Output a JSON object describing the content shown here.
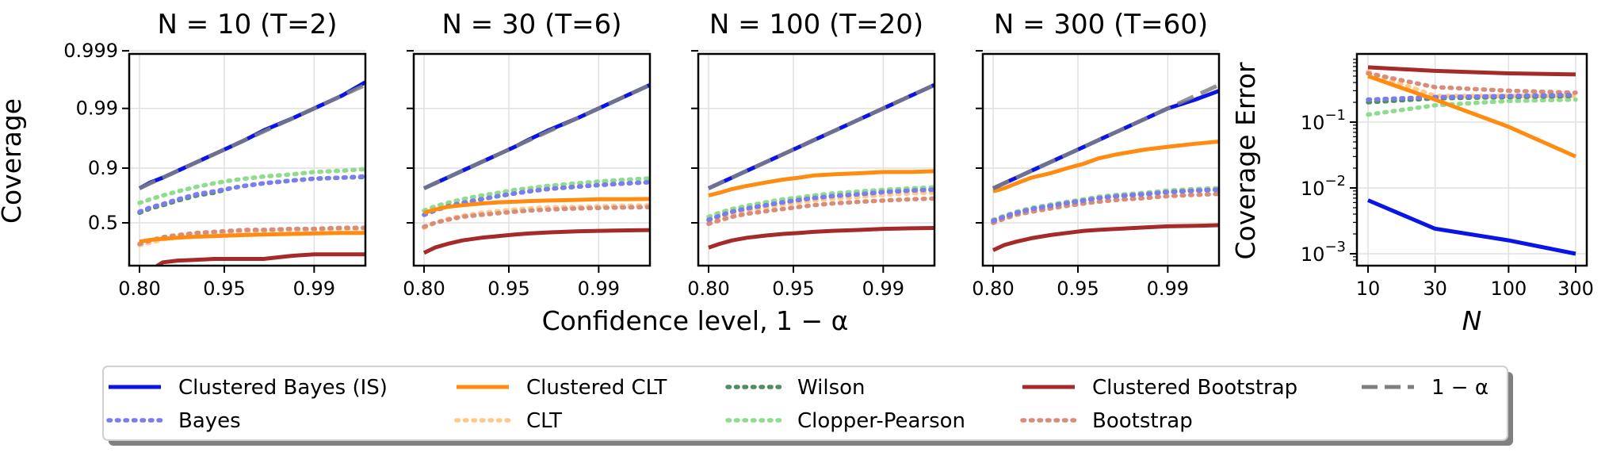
{
  "figure": {
    "xlabel_shared": "Confidence level, 1 − α",
    "ylabel_left": "Coverage"
  },
  "chart_data": [
    {
      "type": "line",
      "title": "N = 10 (T=2)",
      "xlabel": "",
      "ylabel": "Coverage",
      "x_ticks": [
        "0.80",
        "0.95",
        "0.99"
      ],
      "y_ticks": [
        "0.5",
        "0.9",
        "0.99",
        "0.999"
      ],
      "y_scale": "logit",
      "grid": true,
      "x": [
        0.8,
        0.83,
        0.86,
        0.89,
        0.92,
        0.94,
        0.955,
        0.965,
        0.975,
        0.985,
        0.99,
        0.994,
        0.997
      ],
      "series": [
        {
          "name": "Clustered Bayes (IS)",
          "values": [
            0.8,
            0.835,
            0.86,
            0.89,
            0.92,
            0.94,
            0.955,
            0.965,
            0.976,
            0.985,
            0.99,
            0.994,
            0.9975
          ]
        },
        {
          "name": "Bayes",
          "values": [
            0.61,
            0.65,
            0.68,
            0.72,
            0.76,
            0.78,
            0.8,
            0.815,
            0.83,
            0.845,
            0.855,
            0.86,
            0.87
          ]
        },
        {
          "name": "Clustered CLT",
          "values": [
            0.32,
            0.335,
            0.345,
            0.355,
            0.365,
            0.37,
            0.375,
            0.38,
            0.385,
            0.39,
            0.395,
            0.4,
            0.4
          ]
        },
        {
          "name": "CLT",
          "values": [
            0.29,
            0.31,
            0.34,
            0.36,
            0.38,
            0.39,
            0.4,
            0.41,
            0.42,
            0.43,
            0.43,
            0.44,
            0.44
          ]
        },
        {
          "name": "Wilson",
          "values": [
            0.6,
            0.64,
            0.67,
            0.71,
            0.75,
            0.77,
            0.8,
            0.815,
            0.83,
            0.845,
            0.855,
            0.86,
            0.865
          ]
        },
        {
          "name": "Clopper-Pearson",
          "values": [
            0.69,
            0.72,
            0.75,
            0.78,
            0.81,
            0.83,
            0.845,
            0.855,
            0.865,
            0.875,
            0.885,
            0.89,
            0.9
          ]
        },
        {
          "name": "Clustered Bootstrap",
          "values": [
            0.1,
            0.13,
            0.17,
            0.18,
            0.185,
            0.19,
            0.19,
            0.19,
            0.19,
            0.21,
            0.22,
            0.22,
            0.22
          ]
        },
        {
          "name": "Bootstrap",
          "values": [
            0.3,
            0.33,
            0.36,
            0.38,
            0.4,
            0.41,
            0.42,
            0.43,
            0.43,
            0.44,
            0.44,
            0.45,
            0.45
          ]
        },
        {
          "name": "1 − α",
          "values": [
            0.8,
            0.83,
            0.86,
            0.89,
            0.92,
            0.94,
            0.955,
            0.965,
            0.975,
            0.985,
            0.99,
            0.994,
            0.997
          ]
        }
      ]
    },
    {
      "type": "line",
      "title": "N = 30 (T=6)",
      "xlabel": "",
      "ylabel": "",
      "x_ticks": [
        "0.80",
        "0.95",
        "0.99"
      ],
      "y_ticks": [
        "0.5",
        "0.9",
        "0.99",
        "0.999"
      ],
      "y_scale": "logit",
      "grid": true,
      "x": [
        0.8,
        0.83,
        0.86,
        0.89,
        0.92,
        0.94,
        0.955,
        0.965,
        0.975,
        0.985,
        0.99,
        0.994,
        0.997
      ],
      "series": [
        {
          "name": "Clustered Bayes (IS)",
          "values": [
            0.8,
            0.83,
            0.86,
            0.89,
            0.92,
            0.94,
            0.955,
            0.966,
            0.976,
            0.985,
            0.99,
            0.994,
            0.997
          ]
        },
        {
          "name": "Bayes",
          "values": [
            0.58,
            0.62,
            0.66,
            0.69,
            0.72,
            0.745,
            0.765,
            0.78,
            0.795,
            0.81,
            0.82,
            0.83,
            0.84
          ]
        },
        {
          "name": "Clustered CLT",
          "values": [
            0.6,
            0.63,
            0.655,
            0.67,
            0.685,
            0.695,
            0.7,
            0.705,
            0.71,
            0.715,
            0.72,
            0.72,
            0.725
          ]
        },
        {
          "name": "CLT",
          "values": [
            0.45,
            0.5,
            0.54,
            0.57,
            0.6,
            0.615,
            0.63,
            0.64,
            0.65,
            0.655,
            0.66,
            0.665,
            0.67
          ]
        },
        {
          "name": "Wilson",
          "values": [
            0.58,
            0.62,
            0.66,
            0.69,
            0.72,
            0.745,
            0.765,
            0.78,
            0.795,
            0.81,
            0.82,
            0.83,
            0.84
          ]
        },
        {
          "name": "Clopper-Pearson",
          "values": [
            0.62,
            0.66,
            0.69,
            0.72,
            0.75,
            0.77,
            0.79,
            0.8,
            0.815,
            0.83,
            0.84,
            0.85,
            0.86
          ]
        },
        {
          "name": "Clustered Bootstrap",
          "values": [
            0.23,
            0.27,
            0.3,
            0.33,
            0.355,
            0.37,
            0.385,
            0.395,
            0.405,
            0.415,
            0.42,
            0.425,
            0.43
          ]
        },
        {
          "name": "Bootstrap",
          "values": [
            0.46,
            0.5,
            0.53,
            0.56,
            0.58,
            0.595,
            0.61,
            0.62,
            0.63,
            0.64,
            0.645,
            0.65,
            0.655
          ]
        },
        {
          "name": "1 − α",
          "values": [
            0.8,
            0.83,
            0.86,
            0.89,
            0.92,
            0.94,
            0.955,
            0.965,
            0.975,
            0.985,
            0.99,
            0.994,
            0.997
          ]
        }
      ]
    },
    {
      "type": "line",
      "title": "N = 100 (T=20)",
      "xlabel": "",
      "ylabel": "",
      "x_ticks": [
        "0.80",
        "0.95",
        "0.99"
      ],
      "y_ticks": [
        "0.5",
        "0.9",
        "0.99",
        "0.999"
      ],
      "y_scale": "logit",
      "grid": true,
      "x": [
        0.8,
        0.83,
        0.86,
        0.89,
        0.92,
        0.94,
        0.955,
        0.965,
        0.975,
        0.985,
        0.99,
        0.994,
        0.997
      ],
      "series": [
        {
          "name": "Clustered Bayes (IS)",
          "values": [
            0.8,
            0.83,
            0.86,
            0.89,
            0.92,
            0.94,
            0.955,
            0.965,
            0.975,
            0.985,
            0.99,
            0.994,
            0.997
          ]
        },
        {
          "name": "Bayes",
          "values": [
            0.53,
            0.57,
            0.61,
            0.64,
            0.67,
            0.695,
            0.715,
            0.73,
            0.745,
            0.76,
            0.775,
            0.785,
            0.795
          ]
        },
        {
          "name": "Clustered CLT",
          "values": [
            0.75,
            0.77,
            0.795,
            0.815,
            0.835,
            0.85,
            0.86,
            0.87,
            0.875,
            0.88,
            0.885,
            0.885,
            0.89
          ]
        },
        {
          "name": "CLT",
          "values": [
            0.52,
            0.555,
            0.59,
            0.62,
            0.65,
            0.675,
            0.695,
            0.71,
            0.725,
            0.74,
            0.755,
            0.765,
            0.775
          ]
        },
        {
          "name": "Wilson",
          "values": [
            0.53,
            0.57,
            0.61,
            0.64,
            0.67,
            0.695,
            0.715,
            0.73,
            0.745,
            0.76,
            0.775,
            0.785,
            0.795
          ]
        },
        {
          "name": "Clopper-Pearson",
          "values": [
            0.56,
            0.6,
            0.635,
            0.665,
            0.695,
            0.72,
            0.735,
            0.75,
            0.765,
            0.78,
            0.79,
            0.8,
            0.81
          ]
        },
        {
          "name": "Clustered Bootstrap",
          "values": [
            0.27,
            0.3,
            0.33,
            0.355,
            0.375,
            0.39,
            0.4,
            0.41,
            0.42,
            0.43,
            0.44,
            0.445,
            0.45
          ]
        },
        {
          "name": "Bootstrap",
          "values": [
            0.49,
            0.525,
            0.56,
            0.59,
            0.615,
            0.635,
            0.655,
            0.67,
            0.685,
            0.7,
            0.71,
            0.72,
            0.73
          ]
        },
        {
          "name": "1 − α",
          "values": [
            0.8,
            0.83,
            0.86,
            0.89,
            0.92,
            0.94,
            0.955,
            0.965,
            0.975,
            0.985,
            0.99,
            0.994,
            0.997
          ]
        }
      ]
    },
    {
      "type": "line",
      "title": "N = 300 (T=60)",
      "xlabel": "",
      "ylabel": "",
      "x_ticks": [
        "0.80",
        "0.95",
        "0.99"
      ],
      "y_ticks": [
        "0.5",
        "0.9",
        "0.99",
        "0.999"
      ],
      "y_scale": "logit",
      "grid": true,
      "x": [
        0.8,
        0.83,
        0.86,
        0.89,
        0.92,
        0.94,
        0.955,
        0.965,
        0.975,
        0.985,
        0.99,
        0.994,
        0.997
      ],
      "series": [
        {
          "name": "Clustered Bayes (IS)",
          "values": [
            0.8,
            0.83,
            0.86,
            0.89,
            0.92,
            0.94,
            0.955,
            0.965,
            0.975,
            0.985,
            0.99,
            0.993,
            0.996
          ]
        },
        {
          "name": "Bayes",
          "values": [
            0.52,
            0.56,
            0.6,
            0.635,
            0.665,
            0.69,
            0.71,
            0.73,
            0.745,
            0.76,
            0.775,
            0.785,
            0.795
          ]
        },
        {
          "name": "Clustered CLT",
          "values": [
            0.78,
            0.8,
            0.83,
            0.86,
            0.88,
            0.9,
            0.915,
            0.93,
            0.94,
            0.95,
            0.955,
            0.96,
            0.965
          ]
        },
        {
          "name": "CLT",
          "values": [
            0.52,
            0.56,
            0.6,
            0.635,
            0.665,
            0.69,
            0.71,
            0.73,
            0.745,
            0.76,
            0.775,
            0.785,
            0.795
          ]
        },
        {
          "name": "Wilson",
          "values": [
            0.52,
            0.56,
            0.6,
            0.635,
            0.665,
            0.69,
            0.71,
            0.73,
            0.745,
            0.76,
            0.775,
            0.785,
            0.795
          ]
        },
        {
          "name": "Clopper-Pearson",
          "values": [
            0.53,
            0.57,
            0.61,
            0.645,
            0.675,
            0.7,
            0.72,
            0.74,
            0.755,
            0.77,
            0.785,
            0.795,
            0.805
          ]
        },
        {
          "name": "Clustered Bootstrap",
          "values": [
            0.25,
            0.29,
            0.32,
            0.35,
            0.38,
            0.4,
            0.42,
            0.43,
            0.44,
            0.455,
            0.465,
            0.47,
            0.48
          ]
        },
        {
          "name": "Bootstrap",
          "values": [
            0.5,
            0.54,
            0.58,
            0.61,
            0.64,
            0.665,
            0.685,
            0.7,
            0.715,
            0.73,
            0.745,
            0.755,
            0.765
          ]
        },
        {
          "name": "1 − α",
          "values": [
            0.8,
            0.83,
            0.86,
            0.89,
            0.92,
            0.94,
            0.955,
            0.965,
            0.975,
            0.985,
            0.99,
            0.994,
            0.997
          ]
        }
      ]
    },
    {
      "type": "line",
      "title": "",
      "xlabel": "N",
      "ylabel": "Coverage Error",
      "x_scale": "log",
      "y_scale": "log",
      "grid": true,
      "x": [
        10,
        30,
        100,
        300
      ],
      "x_ticks": [
        "10",
        "30",
        "100",
        "300"
      ],
      "y_ticks": [
        "10^-3",
        "10^-2",
        "10^-1"
      ],
      "ylim": [
        0.0008,
        1.0
      ],
      "series": [
        {
          "name": "Clustered Bayes (IS)",
          "values": [
            0.0065,
            0.0024,
            0.0016,
            0.001
          ]
        },
        {
          "name": "Bayes",
          "values": [
            0.22,
            0.24,
            0.25,
            0.26
          ]
        },
        {
          "name": "Clustered CLT",
          "values": [
            0.5,
            0.22,
            0.085,
            0.03
          ]
        },
        {
          "name": "CLT",
          "values": [
            0.58,
            0.25,
            0.25,
            0.25
          ]
        },
        {
          "name": "Wilson",
          "values": [
            0.2,
            0.23,
            0.24,
            0.25
          ]
        },
        {
          "name": "Clopper-Pearson",
          "values": [
            0.13,
            0.18,
            0.21,
            0.22
          ]
        },
        {
          "name": "Clustered Bootstrap",
          "values": [
            0.68,
            0.6,
            0.55,
            0.53
          ]
        },
        {
          "name": "Bootstrap",
          "values": [
            0.55,
            0.34,
            0.3,
            0.28
          ]
        }
      ]
    }
  ],
  "legend": {
    "placement": "bottom-center",
    "entries": [
      {
        "label": "Clustered Bayes (IS)",
        "color": "#0a14e6",
        "style": "solid"
      },
      {
        "label": "Bayes",
        "color": "#7a7cf0",
        "style": "dotted"
      },
      {
        "label": "Clustered CLT",
        "color": "#ff8c10",
        "style": "solid"
      },
      {
        "label": "CLT",
        "color": "#ffc98a",
        "style": "dotted"
      },
      {
        "label": "Wilson",
        "color": "#4f8f5f",
        "style": "dotted"
      },
      {
        "label": "Clopper-Pearson",
        "color": "#8fdc8f",
        "style": "dotted"
      },
      {
        "label": "Clustered Bootstrap",
        "color": "#a52a2a",
        "style": "solid"
      },
      {
        "label": "Bootstrap",
        "color": "#d98c78",
        "style": "dotted"
      },
      {
        "label": "1 − α",
        "color": "#808080",
        "style": "dashed"
      }
    ]
  }
}
